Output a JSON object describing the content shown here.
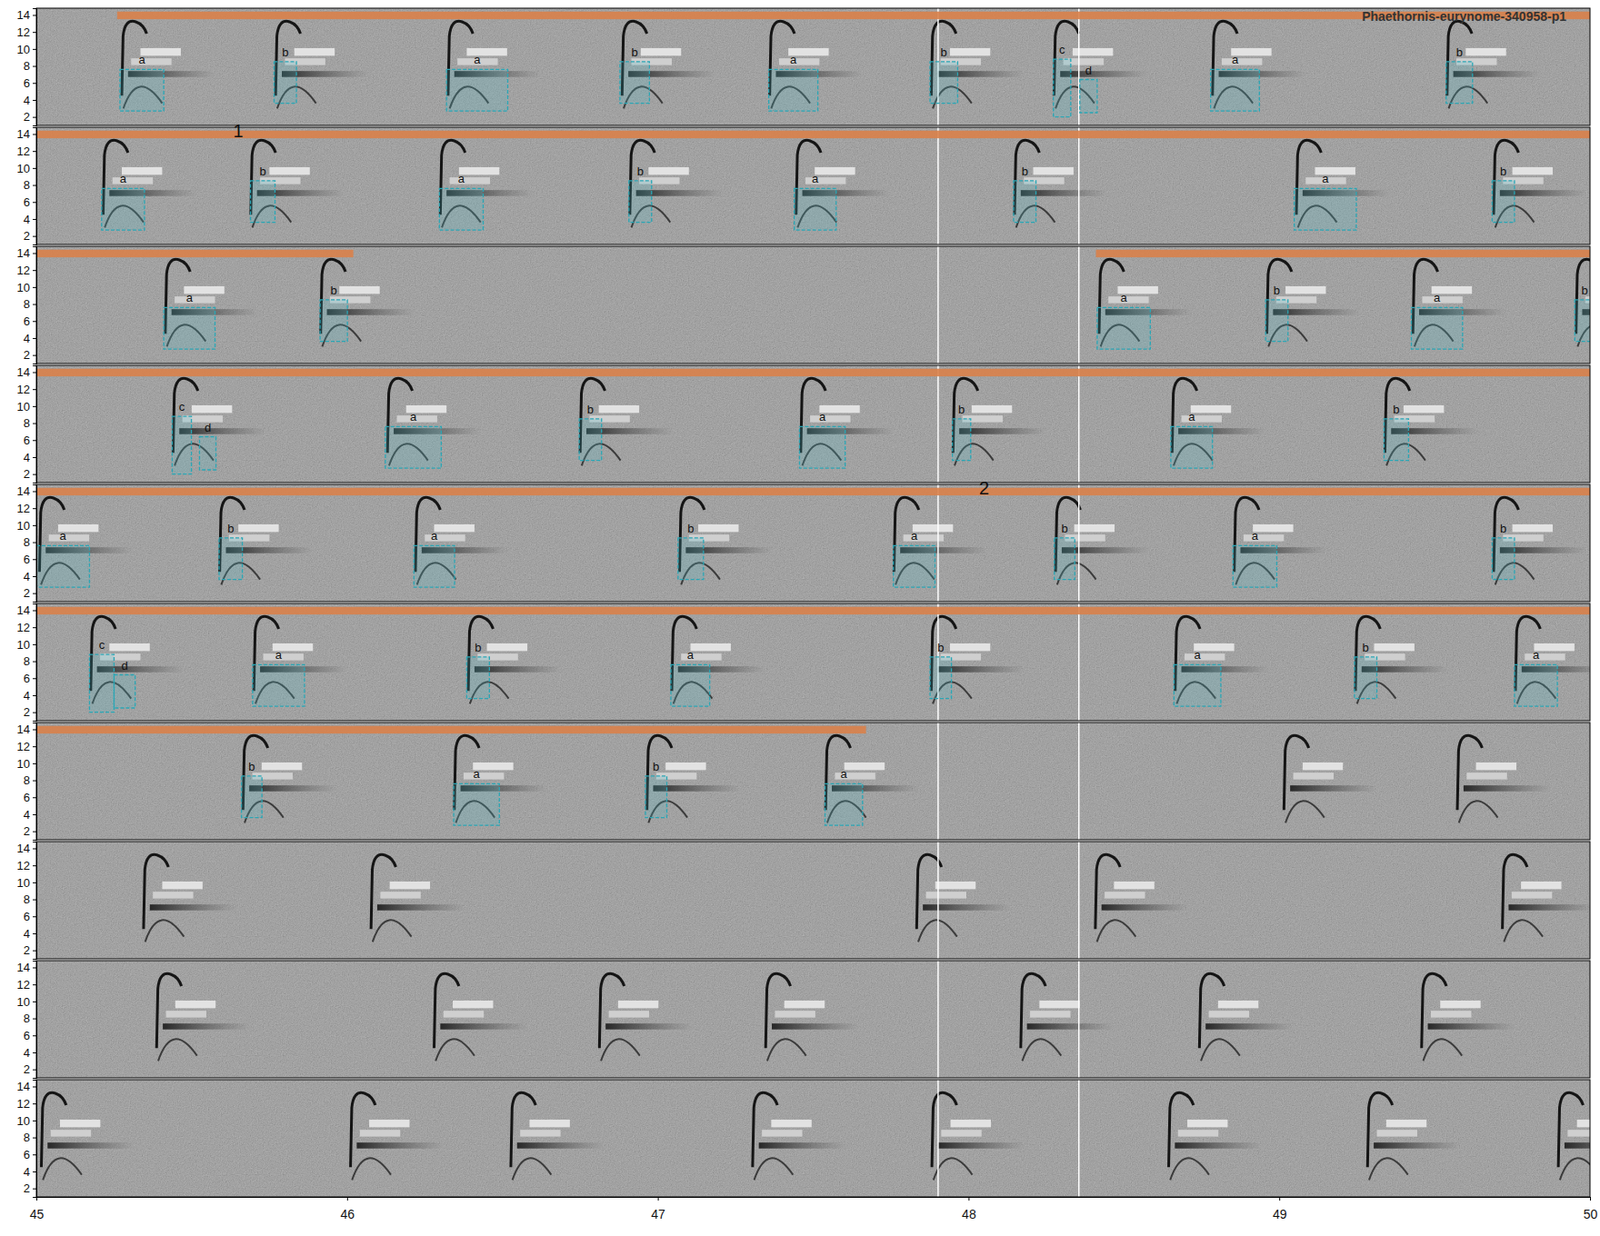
{
  "chart_data": {
    "type": "spectrogram",
    "title": "Phaethornis-eurynome-340958-p1",
    "xlim": [
      45,
      50
    ],
    "xticks": [
      45,
      46,
      47,
      48,
      49,
      50
    ],
    "ylim": [
      1,
      14.8
    ],
    "yticks": [
      2,
      4,
      6,
      8,
      10,
      12,
      14
    ],
    "markers": [
      47.902,
      48.355
    ],
    "rows": [
      {
        "selections": [
          [
            45.26,
            50
          ]
        ],
        "labels": [],
        "annotations": [
          {
            "label": "a",
            "start": 45.269,
            "end": 45.41,
            "low": 2.7,
            "high": 7.6
          },
          {
            "label": "b",
            "start": 45.765,
            "end": 45.837,
            "low": 3.6,
            "high": 8.5
          },
          {
            "label": "a",
            "start": 46.32,
            "end": 46.517,
            "low": 2.7,
            "high": 7.6
          },
          {
            "label": "b",
            "start": 46.878,
            "end": 46.973,
            "low": 3.6,
            "high": 8.5
          },
          {
            "label": "a",
            "start": 47.357,
            "end": 47.515,
            "low": 2.7,
            "high": 7.6
          },
          {
            "label": "b",
            "start": 47.876,
            "end": 47.965,
            "low": 3.6,
            "high": 8.5
          },
          {
            "label": "c",
            "start": 48.273,
            "end": 48.329,
            "low": 2.0,
            "high": 8.8
          },
          {
            "label": "d",
            "start": 48.358,
            "end": 48.414,
            "low": 2.5,
            "high": 6.4
          },
          {
            "label": "a",
            "start": 48.779,
            "end": 48.936,
            "low": 2.7,
            "high": 7.6
          },
          {
            "label": "b",
            "start": 49.537,
            "end": 49.622,
            "low": 3.6,
            "high": 8.5
          }
        ],
        "notes": [
          45.275,
          45.77,
          46.325,
          46.885,
          47.36,
          47.88,
          48.275,
          48.785,
          49.54
        ]
      },
      {
        "selections": [
          [
            45,
            50
          ]
        ],
        "labels": [
          {
            "text": "1",
            "time": 45.65,
            "freq": 14.2
          }
        ],
        "annotations": [
          {
            "label": "a",
            "start": 45.21,
            "end": 45.348,
            "low": 2.7,
            "high": 7.6
          },
          {
            "label": "b",
            "start": 45.689,
            "end": 45.768,
            "low": 3.6,
            "high": 8.5
          },
          {
            "label": "a",
            "start": 46.297,
            "end": 46.438,
            "low": 2.7,
            "high": 7.6
          },
          {
            "label": "b",
            "start": 46.907,
            "end": 46.98,
            "low": 3.6,
            "high": 8.5
          },
          {
            "label": "a",
            "start": 47.439,
            "end": 47.574,
            "low": 2.7,
            "high": 7.6
          },
          {
            "label": "b",
            "start": 48.145,
            "end": 48.217,
            "low": 3.6,
            "high": 8.5
          },
          {
            "label": "a",
            "start": 49.048,
            "end": 49.248,
            "low": 2.7,
            "high": 7.6
          },
          {
            "label": "b",
            "start": 49.685,
            "end": 49.757,
            "low": 3.6,
            "high": 8.5
          }
        ],
        "notes": [
          45.215,
          45.69,
          46.3,
          46.91,
          47.445,
          48.148,
          49.055,
          49.69
        ]
      },
      {
        "selections": [
          [
            45,
            46.02
          ],
          [
            48.41,
            50
          ]
        ],
        "labels": [],
        "annotations": [
          {
            "label": "a",
            "start": 45.41,
            "end": 45.575,
            "low": 2.7,
            "high": 7.6
          },
          {
            "label": "b",
            "start": 45.913,
            "end": 46.001,
            "low": 3.6,
            "high": 8.5
          },
          {
            "label": "a",
            "start": 48.414,
            "end": 48.585,
            "low": 2.7,
            "high": 7.6
          },
          {
            "label": "b",
            "start": 48.956,
            "end": 49.028,
            "low": 3.6,
            "high": 8.5
          },
          {
            "label": "a",
            "start": 49.425,
            "end": 49.59,
            "low": 2.7,
            "high": 7.6
          },
          {
            "label": "b",
            "start": 49.951,
            "end": 50.05,
            "low": 3.6,
            "high": 8.5
          }
        ],
        "notes": [
          45.415,
          45.915,
          48.42,
          48.96,
          49.43,
          49.955
        ]
      },
      {
        "selections": [
          [
            45,
            50
          ]
        ],
        "labels": [],
        "annotations": [
          {
            "label": "c",
            "start": 45.437,
            "end": 45.499,
            "low": 2.0,
            "high": 8.8
          },
          {
            "label": "d",
            "start": 45.525,
            "end": 45.578,
            "low": 2.5,
            "high": 6.4
          },
          {
            "label": "a",
            "start": 46.123,
            "end": 46.303,
            "low": 2.7,
            "high": 7.6
          },
          {
            "label": "b",
            "start": 46.747,
            "end": 46.819,
            "low": 3.6,
            "high": 8.5
          },
          {
            "label": "a",
            "start": 47.456,
            "end": 47.603,
            "low": 2.7,
            "high": 7.6
          },
          {
            "label": "b",
            "start": 47.948,
            "end": 48.007,
            "low": 3.6,
            "high": 8.5
          },
          {
            "label": "a",
            "start": 48.651,
            "end": 48.785,
            "low": 2.7,
            "high": 7.6
          },
          {
            "label": "b",
            "start": 49.337,
            "end": 49.416,
            "low": 3.6,
            "high": 8.5
          }
        ],
        "notes": [
          45.44,
          46.13,
          46.75,
          47.46,
          47.95,
          48.655,
          49.34
        ]
      },
      {
        "selections": [
          [
            45,
            50
          ]
        ],
        "labels": [
          {
            "text": "2",
            "time": 48.05,
            "freq": 14.2
          }
        ],
        "annotations": [
          {
            "label": "a",
            "start": 45.0,
            "end": 45.171,
            "low": 2.7,
            "high": 7.6
          },
          {
            "label": "b",
            "start": 45.588,
            "end": 45.663,
            "low": 3.6,
            "high": 8.5
          },
          {
            "label": "a",
            "start": 46.215,
            "end": 46.346,
            "low": 2.7,
            "high": 7.6
          },
          {
            "label": "b",
            "start": 47.065,
            "end": 47.147,
            "low": 3.6,
            "high": 8.5
          },
          {
            "label": "a",
            "start": 47.758,
            "end": 47.892,
            "low": 2.7,
            "high": 7.6
          },
          {
            "label": "b",
            "start": 48.276,
            "end": 48.342,
            "low": 3.6,
            "high": 8.5
          },
          {
            "label": "a",
            "start": 48.851,
            "end": 48.992,
            "low": 2.7,
            "high": 7.6
          },
          {
            "label": "b",
            "start": 49.685,
            "end": 49.757,
            "low": 3.6,
            "high": 8.5
          }
        ],
        "notes": [
          45.01,
          45.59,
          46.22,
          47.07,
          47.76,
          48.28,
          48.855,
          49.69
        ]
      },
      {
        "selections": [
          [
            45,
            50
          ]
        ],
        "labels": [],
        "annotations": [
          {
            "label": "c",
            "start": 45.171,
            "end": 45.25,
            "low": 2.0,
            "high": 8.8
          },
          {
            "label": "d",
            "start": 45.25,
            "end": 45.318,
            "low": 2.5,
            "high": 6.4
          },
          {
            "label": "a",
            "start": 45.696,
            "end": 45.863,
            "low": 2.7,
            "high": 7.6
          },
          {
            "label": "b",
            "start": 46.385,
            "end": 46.458,
            "low": 3.6,
            "high": 8.5
          },
          {
            "label": "a",
            "start": 47.042,
            "end": 47.167,
            "low": 2.7,
            "high": 7.6
          },
          {
            "label": "b",
            "start": 47.876,
            "end": 47.945,
            "low": 3.6,
            "high": 8.5
          },
          {
            "label": "a",
            "start": 48.661,
            "end": 48.812,
            "low": 2.7,
            "high": 7.6
          },
          {
            "label": "b",
            "start": 49.242,
            "end": 49.314,
            "low": 3.6,
            "high": 8.5
          },
          {
            "label": "a",
            "start": 49.757,
            "end": 49.895,
            "low": 2.7,
            "high": 7.6
          }
        ],
        "notes": [
          45.175,
          45.7,
          46.39,
          47.045,
          47.88,
          48.665,
          49.245,
          49.76
        ]
      },
      {
        "selections": [
          [
            45,
            47.67
          ]
        ],
        "labels": [],
        "annotations": [
          {
            "label": "b",
            "start": 45.66,
            "end": 45.726,
            "low": 3.6,
            "high": 8.5
          },
          {
            "label": "a",
            "start": 46.343,
            "end": 46.49,
            "low": 2.7,
            "high": 7.6
          },
          {
            "label": "b",
            "start": 46.96,
            "end": 47.029,
            "low": 3.6,
            "high": 8.5
          },
          {
            "label": "a",
            "start": 47.538,
            "end": 47.659,
            "low": 2.7,
            "high": 7.6
          }
        ],
        "notes": [
          45.665,
          46.345,
          46.965,
          47.54,
          49.015,
          49.573
        ]
      },
      {
        "selections": [],
        "labels": [],
        "annotations": [],
        "notes": [
          45.345,
          46.077,
          47.833,
          48.408,
          49.718
        ]
      },
      {
        "selections": [],
        "labels": [],
        "annotations": [],
        "notes": [
          45.387,
          46.28,
          46.812,
          47.347,
          48.168,
          48.743,
          49.458
        ]
      },
      {
        "selections": [],
        "labels": [],
        "annotations": [],
        "notes": [
          45.016,
          46.011,
          46.527,
          47.305,
          47.882,
          48.644,
          49.284,
          49.898
        ]
      }
    ]
  }
}
